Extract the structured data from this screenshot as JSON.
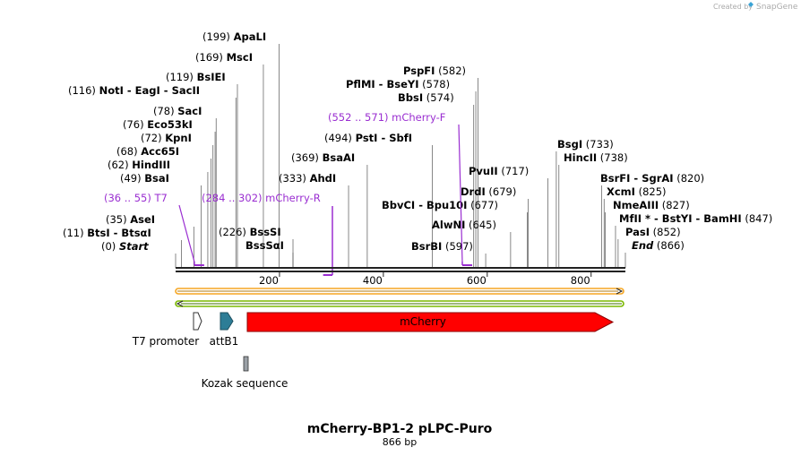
{
  "branding": {
    "created_by": "Created by",
    "app_name": "SnapGene",
    "logo_icon": "snapgene-logo-icon",
    "logo_color": "#3aa3d6"
  },
  "sequence": {
    "length": 866,
    "name": "mCherry-BP1-2 pLPC-Puro",
    "length_label": "866 bp"
  },
  "ruler": {
    "ticks": [
      200,
      400,
      600,
      800
    ],
    "labels": [
      "200",
      "400",
      "600",
      "800"
    ]
  },
  "sites": [
    {
      "pos": 0,
      "pos_label": "(0)",
      "name": "Start",
      "italic": true
    },
    {
      "pos": 11,
      "pos_label": "(11)",
      "name": "BtsI  -  BtsαI"
    },
    {
      "pos": 35,
      "pos_label": "(35)",
      "name": "AseI"
    },
    {
      "pos": 49,
      "pos_label": "(49)",
      "name": "BsaI"
    },
    {
      "pos": 62,
      "pos_label": "(62)",
      "name": "HindIII"
    },
    {
      "pos": 68,
      "pos_label": "(68)",
      "name": "Acc65I"
    },
    {
      "pos": 72,
      "pos_label": "(72)",
      "name": "KpnI"
    },
    {
      "pos": 76,
      "pos_label": "(76)",
      "name": "Eco53kI"
    },
    {
      "pos": 78,
      "pos_label": "(78)",
      "name": "SacI"
    },
    {
      "pos": 116,
      "pos_label": "(116)",
      "name": "NotI  -  EagI  -  SacII"
    },
    {
      "pos": 119,
      "pos_label": "(119)",
      "name": "BsIEI"
    },
    {
      "pos": 169,
      "pos_label": "(169)",
      "name": "MscI"
    },
    {
      "pos": 199,
      "pos_label": "(199)",
      "name": "ApaLI"
    },
    {
      "pos": 226,
      "pos_label": "(226)",
      "name": "BssSI"
    },
    {
      "pos": 226,
      "pos_label": "",
      "name": "BssSαI"
    },
    {
      "pos": 333,
      "pos_label": "(333)",
      "name": "AhdI"
    },
    {
      "pos": 369,
      "pos_label": "(369)",
      "name": "BsaAI"
    },
    {
      "pos": 494,
      "pos_label": "(494)",
      "name": "PstI  -  SbfI"
    },
    {
      "pos": 574,
      "pos_label": "(574)",
      "name": "BbsI"
    },
    {
      "pos": 578,
      "pos_label": "(578)",
      "name": "PflMI  -  BseYI"
    },
    {
      "pos": 582,
      "pos_label": "(582)",
      "name": "PspFI"
    },
    {
      "pos": 597,
      "pos_label": "(597)",
      "name": "BsrBI"
    },
    {
      "pos": 645,
      "pos_label": "(645)",
      "name": "AlwNI"
    },
    {
      "pos": 677,
      "pos_label": "(677)",
      "name": "BbvCI  -  Bpu10I"
    },
    {
      "pos": 679,
      "pos_label": "(679)",
      "name": "DrdI"
    },
    {
      "pos": 717,
      "pos_label": "(717)",
      "name": "PvuII"
    },
    {
      "pos": 733,
      "pos_label": "(733)",
      "name": "BsgI"
    },
    {
      "pos": 738,
      "pos_label": "(738)",
      "name": "HincII"
    },
    {
      "pos": 820,
      "pos_label": "(820)",
      "name": "BsrFI  -  SgrAI"
    },
    {
      "pos": 825,
      "pos_label": "(825)",
      "name": "XcmI"
    },
    {
      "pos": 827,
      "pos_label": "(827)",
      "name": "NmeAIII"
    },
    {
      "pos": 847,
      "pos_label": "(847)",
      "name": "MfII *  -  BstYI  -  BamHI"
    },
    {
      "pos": 852,
      "pos_label": "(852)",
      "name": "PasI"
    },
    {
      "pos": 866,
      "pos_label": "(866)",
      "name": "End",
      "italic": true
    }
  ],
  "primers": [
    {
      "range": "(36 .. 55)",
      "name": "T7",
      "start": 36,
      "end": 55
    },
    {
      "range": "(284 .. 302)",
      "name": "mCherry-R",
      "start": 284,
      "end": 302
    },
    {
      "range": "(552 .. 571)",
      "name": "mCherry-F",
      "start": 552,
      "end": 571
    }
  ],
  "features": [
    {
      "name": "T7 promoter",
      "start": 36,
      "end": 55,
      "color": "#ffffff"
    },
    {
      "name": "attB1",
      "start": 85,
      "end": 109,
      "color": "#2d7d96"
    },
    {
      "name": "Kozak sequence",
      "start": 136,
      "end": 145,
      "color": "#9aa0a6"
    },
    {
      "name": "mCherry",
      "start": 139,
      "end": 849,
      "color": "#ff0000"
    }
  ],
  "orf_bars": {
    "forward_color": "#f5a623",
    "reverse_color": "#7ab800"
  },
  "colors": {
    "primer": "#9a2ed1",
    "backbone": "#222222"
  }
}
